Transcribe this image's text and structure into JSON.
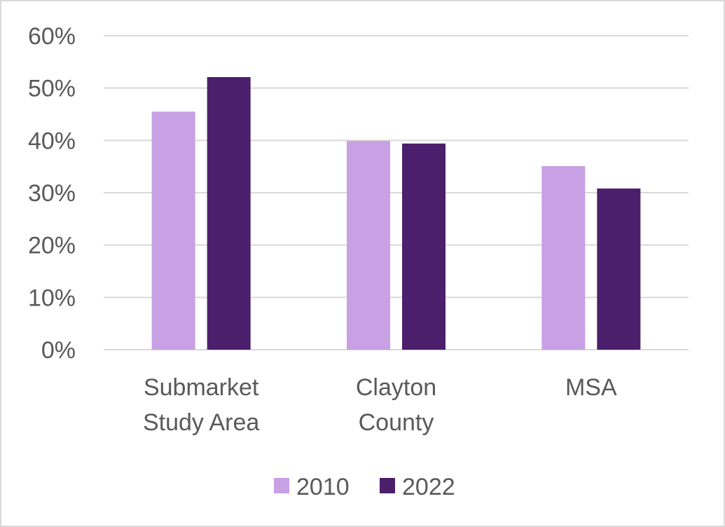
{
  "chart_data": {
    "type": "bar",
    "title": "",
    "xlabel": "",
    "ylabel": "",
    "categories": [
      [
        "Submarket",
        "Study Area"
      ],
      [
        "Clayton",
        "County"
      ],
      [
        "MSA"
      ]
    ],
    "series": [
      {
        "name": "2010",
        "color": "#c8a0e4",
        "values": [
          45.5,
          39.9,
          35.1
        ]
      },
      {
        "name": "2022",
        "color": "#4b1f6b",
        "values": [
          52.1,
          39.4,
          30.8
        ]
      }
    ],
    "ylim": [
      0,
      60
    ],
    "yticks": [
      0,
      10,
      20,
      30,
      40,
      50,
      60
    ],
    "ytick_labels": [
      "0%",
      "10%",
      "20%",
      "30%",
      "40%",
      "50%",
      "60%"
    ],
    "grid": true,
    "legend_position": "bottom"
  }
}
